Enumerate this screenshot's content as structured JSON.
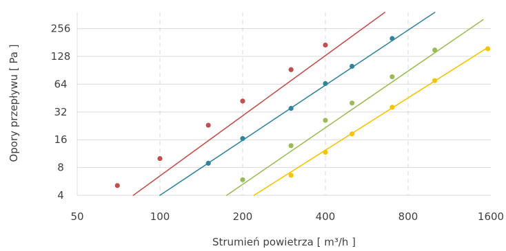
{
  "chart_data": {
    "type": "line",
    "xlabel": "Strumień powietrza [ m³/h ]",
    "ylabel": "Opory przepływu [ Pa ]",
    "x_scale": "log2",
    "y_scale": "log2",
    "xlim": [
      50,
      1600
    ],
    "ylim": [
      4,
      384
    ],
    "x_ticks": [
      "50",
      "100",
      "200",
      "400",
      "800",
      "1600"
    ],
    "y_ticks": [
      "4",
      "8",
      "16",
      "32",
      "64",
      "128",
      "256"
    ],
    "grid": {
      "x": "dashed",
      "y": "solid"
    },
    "series": [
      {
        "color": "#c0504d",
        "line": [
          [
            80,
            4
          ],
          [
            658,
            384
          ]
        ],
        "points": [
          [
            70,
            5.1
          ],
          [
            100,
            10
          ],
          [
            150,
            23
          ],
          [
            200,
            42
          ],
          [
            300,
            92
          ],
          [
            400,
            170
          ]
        ]
      },
      {
        "color": "#31849b",
        "line": [
          [
            100,
            4
          ],
          [
            1000,
            384
          ]
        ],
        "points": [
          [
            150,
            8.9
          ],
          [
            200,
            16.5
          ],
          [
            300,
            35
          ],
          [
            400,
            65
          ],
          [
            500,
            100
          ],
          [
            700,
            200
          ]
        ]
      },
      {
        "color": "#9bbb59",
        "line": [
          [
            175,
            4
          ],
          [
            1500,
            320
          ]
        ],
        "points": [
          [
            200,
            5.9
          ],
          [
            300,
            13.8
          ],
          [
            400,
            26
          ],
          [
            500,
            40
          ],
          [
            700,
            77
          ],
          [
            1000,
            150
          ]
        ]
      },
      {
        "color": "#f2c500",
        "line": [
          [
            220,
            4
          ],
          [
            1560,
            160
          ]
        ],
        "points": [
          [
            300,
            6.6
          ],
          [
            400,
            11.7
          ],
          [
            500,
            18.5
          ],
          [
            700,
            36
          ],
          [
            1000,
            70
          ],
          [
            1560,
            155
          ]
        ]
      }
    ]
  }
}
